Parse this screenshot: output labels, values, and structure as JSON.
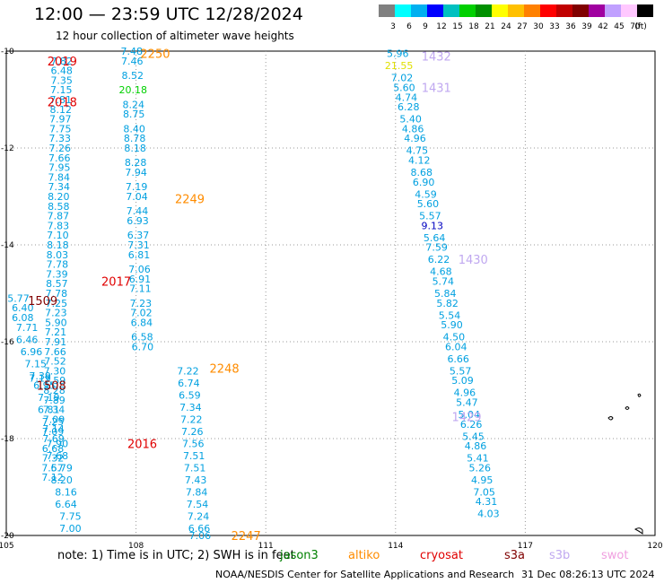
{
  "header": {
    "title": "12:00 — 23:59 UTC 12/28/2024",
    "subtitle": "12 hour collection of altimeter wave heights"
  },
  "colorbar": {
    "swatches": [
      "#808080",
      "#00ffff",
      "#00b0f0",
      "#0000ff",
      "#00c0c0",
      "#00d000",
      "#009000",
      "#ffff00",
      "#ffc000",
      "#ff8000",
      "#ff0000",
      "#c00000",
      "#800000",
      "#a000a0",
      "#c0a0ff",
      "#ffc8ff",
      "#000000"
    ],
    "labels": [
      "3",
      "6",
      "9",
      "12",
      "15",
      "18",
      "21",
      "24",
      "27",
      "30",
      "33",
      "36",
      "39",
      "42",
      "45",
      "70",
      "(ft)"
    ]
  },
  "footer": {
    "note": "note:  1) Time is in UTC; 2) SWH is in feet",
    "credit": "NOAA/NESDIS Center for Satellite Applications and Research",
    "timestamp": "31 Dec 08:26:13 UTC 2024"
  },
  "satellites": [
    {
      "name": "jason3",
      "color": "#008000"
    },
    {
      "name": "altiko",
      "color": "#ff8c00"
    },
    {
      "name": "cryosat",
      "color": "#e00000"
    },
    {
      "name": "s3a",
      "color": "#800000"
    },
    {
      "name": "s3b",
      "color": "#c0a8f0"
    },
    {
      "name": "swot",
      "color": "#f0a0e0"
    }
  ],
  "chart_data": {
    "type": "scatter",
    "xlim": [
      105,
      120
    ],
    "ylim": [
      -20,
      -10
    ],
    "x_ticks": [
      105,
      108,
      111,
      114,
      117,
      120
    ],
    "y_ticks": [
      -10,
      -12,
      -14,
      -16,
      -18,
      -20
    ],
    "x_tick_labels": [
      "105",
      "108",
      "111",
      "114",
      "117",
      "120"
    ],
    "y_tick_labels": [
      "-10",
      "-12",
      "-14",
      "-16",
      "-18",
      "-20"
    ],
    "grid": "dotted",
    "series": [
      {
        "name": "2019",
        "color": "#00a0e0",
        "labels": [
          "7.82",
          "6.48",
          "7.35",
          "7.15",
          "7.81",
          "8.12",
          "7.97",
          "7.75",
          "7.33",
          "7.26",
          "7.66",
          "7.95",
          "7.84",
          "7.34",
          "8.20",
          "8.58",
          "7.87",
          "7.83",
          "7.10",
          "8.18",
          "8.03",
          "7.78",
          "7.39",
          "8.57",
          "7.78",
          "7.25",
          "7.23",
          "5.90",
          "7.21",
          "7.91",
          "7.66",
          "7.52",
          "7.30",
          "7.59",
          "8.28",
          "7.89",
          "7.34",
          "7.09",
          "7.14",
          "7.69",
          "6.68",
          "7.32",
          "7.57",
          "7.12"
        ],
        "x": [
          106.28,
          106.28,
          106.28,
          106.27,
          106.26,
          106.26,
          106.25,
          106.25,
          106.24,
          106.24,
          106.23,
          106.23,
          106.22,
          106.22,
          106.21,
          106.21,
          106.2,
          106.2,
          106.19,
          106.19,
          106.18,
          106.18,
          106.17,
          106.17,
          106.16,
          106.16,
          106.15,
          106.15,
          106.14,
          106.14,
          106.13,
          106.13,
          106.12,
          106.12,
          106.11,
          106.11,
          106.1,
          106.1,
          106.09,
          106.09,
          106.08,
          106.08,
          106.07,
          106.07
        ],
        "y": [
          -10.2,
          -10.4,
          -10.6,
          -10.8,
          -11.0,
          -11.2,
          -11.4,
          -11.6,
          -11.8,
          -12.0,
          -12.2,
          -12.4,
          -12.6,
          -12.8,
          -13.0,
          -13.2,
          -13.4,
          -13.6,
          -13.8,
          -14.0,
          -14.2,
          -14.4,
          -14.6,
          -14.8,
          -15.0,
          -15.2,
          -15.4,
          -15.6,
          -15.8,
          -16.0,
          -16.2,
          -16.4,
          -16.6,
          -16.8,
          -17.0,
          -17.2,
          -17.4,
          -17.6,
          -17.8,
          -18.0,
          -18.2,
          -18.4,
          -18.6,
          -18.8
        ]
      },
      {
        "name": "2018",
        "color": "#00a0e0",
        "labels": [
          "7.48",
          "7.46",
          "8.52",
          "20.18",
          "8.24",
          "8.75",
          "8.40",
          "8.78",
          "8.18",
          "8.28",
          "7.94",
          "7.19",
          "7.04",
          "7.44",
          "6.93",
          "6.37",
          "7.31",
          "6.81",
          "7.06",
          "6.91",
          "7.11",
          "7.23",
          "7.02",
          "6.84",
          "6.58",
          "6.70"
        ],
        "x": [
          107.9,
          107.91,
          107.92,
          107.93,
          107.94,
          107.95,
          107.96,
          107.97,
          107.98,
          107.99,
          108.0,
          108.01,
          108.02,
          108.03,
          108.04,
          108.05,
          108.06,
          108.07,
          108.08,
          108.09,
          108.1,
          108.11,
          108.12,
          108.13,
          108.14,
          108.15
        ],
        "y": [
          -10.0,
          -10.2,
          -10.5,
          -10.8,
          -11.1,
          -11.3,
          -11.6,
          -11.8,
          -12.0,
          -12.3,
          -12.5,
          -12.8,
          -13.0,
          -13.3,
          -13.5,
          -13.8,
          -14.0,
          -14.2,
          -14.5,
          -14.7,
          -14.9,
          -15.2,
          -15.4,
          -15.6,
          -15.9,
          -16.1
        ]
      },
      {
        "name": "1509",
        "color": "#00a0e0",
        "labels": [
          "5.77",
          "6.40",
          "6.08",
          "7.71",
          "6.46",
          "6.96",
          "7.15",
          "7.39",
          "7.19",
          "6.95",
          "7.19",
          "6.81",
          "7.25",
          "7.09",
          "7.90",
          "7.68",
          "6.79",
          "8.20",
          "8.16",
          "6.64",
          "7.75",
          "7.00"
        ],
        "x": [
          105.28,
          105.38,
          105.38,
          105.48,
          105.48,
          105.58,
          105.68,
          105.78,
          105.78,
          105.88,
          105.98,
          105.98,
          106.08,
          106.08,
          106.18,
          106.18,
          106.28,
          106.28,
          106.38,
          106.38,
          106.48,
          106.48
        ],
        "y": [
          -15.1,
          -15.3,
          -15.5,
          -15.7,
          -15.95,
          -16.2,
          -16.45,
          -16.7,
          -16.75,
          -16.9,
          -17.15,
          -17.4,
          -17.65,
          -17.85,
          -18.1,
          -18.35,
          -18.6,
          -18.85,
          -19.1,
          -19.35,
          -19.6,
          -19.85
        ]
      },
      {
        "name": "2016",
        "color": "#00a0e0",
        "labels": [
          "7.22",
          "6.74",
          "6.59",
          "7.34",
          "7.22",
          "7.26",
          "7.56",
          "7.51",
          "7.51",
          "7.43",
          "7.84",
          "7.54",
          "7.24",
          "6.66",
          "7.06"
        ],
        "x": [
          109.2,
          109.22,
          109.24,
          109.26,
          109.28,
          109.3,
          109.32,
          109.34,
          109.36,
          109.38,
          109.4,
          109.42,
          109.44,
          109.46,
          109.48
        ],
        "y": [
          -16.6,
          -16.85,
          -17.1,
          -17.35,
          -17.6,
          -17.85,
          -18.1,
          -18.35,
          -18.6,
          -18.85,
          -19.1,
          -19.35,
          -19.6,
          -19.85,
          -20.0
        ]
      },
      {
        "name": "1432",
        "color": "#00a0e0",
        "labels": [
          "5.96",
          "21.55",
          "7.02",
          "5.60",
          "4.74",
          "6.28",
          "5.40",
          "4.86",
          "4.96",
          "4.75",
          "4.12",
          "8.68",
          "6.90",
          "4.59",
          "5.60",
          "5.57",
          "9.13",
          "5.64",
          "7.59",
          "6.22",
          "4.68",
          "5.74",
          "5.84",
          "5.82",
          "5.54",
          "5.90",
          "4.50",
          "6.04",
          "6.66",
          "5.57",
          "5.09",
          "4.96",
          "5.47",
          "5.04",
          "6.26",
          "5.45",
          "4.86",
          "5.41",
          "5.26",
          "4.95",
          "7.05",
          "4.31",
          "4.03"
        ],
        "x": [
          114.05,
          114.08,
          114.15,
          114.2,
          114.25,
          114.3,
          114.35,
          114.4,
          114.45,
          114.5,
          114.55,
          114.6,
          114.65,
          114.7,
          114.75,
          114.8,
          114.85,
          114.9,
          114.95,
          115.0,
          115.05,
          115.1,
          115.15,
          115.2,
          115.25,
          115.3,
          115.35,
          115.4,
          115.45,
          115.5,
          115.55,
          115.6,
          115.65,
          115.7,
          115.75,
          115.8,
          115.85,
          115.9,
          115.95,
          116.0,
          116.05,
          116.1,
          116.15
        ],
        "y": [
          -10.05,
          -10.3,
          -10.55,
          -10.75,
          -10.95,
          -11.15,
          -11.4,
          -11.6,
          -11.8,
          -12.05,
          -12.25,
          -12.5,
          -12.7,
          -12.95,
          -13.15,
          -13.4,
          -13.6,
          -13.85,
          -14.05,
          -14.3,
          -14.55,
          -14.75,
          -15.0,
          -15.2,
          -15.45,
          -15.65,
          -15.9,
          -16.1,
          -16.35,
          -16.6,
          -16.8,
          -17.05,
          -17.25,
          -17.5,
          -17.7,
          -17.95,
          -18.15,
          -18.4,
          -18.6,
          -18.85,
          -19.1,
          -19.3,
          -19.55
        ]
      }
    ],
    "pass_labels": [
      {
        "text": "2019",
        "color": "#e00000",
        "x": 105.95,
        "y": -10.2
      },
      {
        "text": "2018",
        "color": "#e00000",
        "x": 105.95,
        "y": -11.05
      },
      {
        "text": "2017",
        "color": "#e00000",
        "x": 107.2,
        "y": -14.75
      },
      {
        "text": "1509",
        "color": "#800000",
        "x": 105.5,
        "y": -15.15
      },
      {
        "text": "1508",
        "color": "#800000",
        "x": 105.7,
        "y": -16.9
      },
      {
        "text": "2016",
        "color": "#e00000",
        "x": 107.8,
        "y": -18.1
      },
      {
        "text": "2250",
        "color": "#ff8c00",
        "x": 108.1,
        "y": -10.05
      },
      {
        "text": "2249",
        "color": "#ff8c00",
        "x": 108.9,
        "y": -13.05
      },
      {
        "text": "2248",
        "color": "#ff8c00",
        "x": 109.7,
        "y": -16.55
      },
      {
        "text": "2247",
        "color": "#ff8c00",
        "x": 110.2,
        "y": -20.0
      },
      {
        "text": "1432",
        "color": "#c0a8f0",
        "x": 114.6,
        "y": -10.1
      },
      {
        "text": "1431",
        "color": "#c0a8f0",
        "x": 114.6,
        "y": -10.75
      },
      {
        "text": "1430",
        "color": "#c0a8f0",
        "x": 115.45,
        "y": -14.3
      },
      {
        "text": "1429",
        "color": "#c0a8f0",
        "x": 115.3,
        "y": -17.55
      }
    ]
  }
}
